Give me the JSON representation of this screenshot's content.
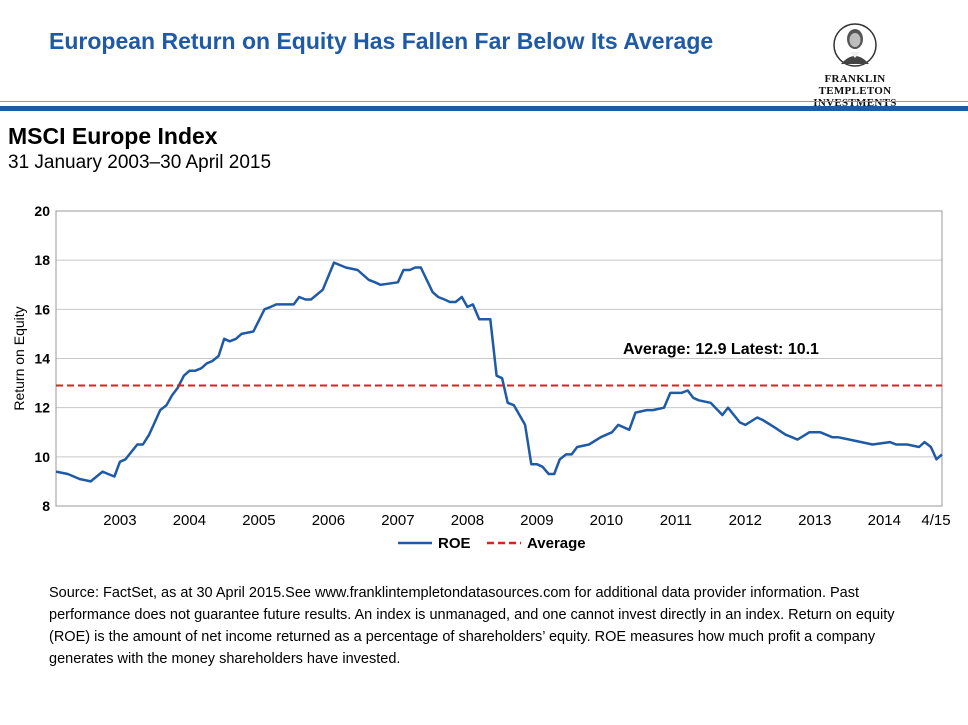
{
  "header": {
    "title": "European Return on Equity Has Fallen Far Below Its Average",
    "logo_line1": "FRANKLIN TEMPLETON",
    "logo_line2": "INVESTMENTS"
  },
  "subtitle": {
    "title": "MSCI Europe Index",
    "date_range": "31 January 2003–30 April 2015"
  },
  "colors": {
    "accent": "#1f5aa6",
    "roe_line": "#1f5aa6",
    "average_line": "#e0201e"
  },
  "chart_data": {
    "type": "line",
    "ylabel": "Return on Equity",
    "xlabel": "",
    "ylim": [
      8,
      20
    ],
    "yticks": [
      8,
      10,
      12,
      14,
      16,
      18,
      20
    ],
    "xlim": [
      2002.58,
      2015.33
    ],
    "categories": [
      "2003",
      "2004",
      "2005",
      "2006",
      "2007",
      "2008",
      "2009",
      "2010",
      "2011",
      "2012",
      "2013",
      "2014",
      "4/15"
    ],
    "grid": true,
    "legend_position": "bottom",
    "annotation": "Average: 12.9 Latest: 10.1",
    "series": [
      {
        "name": "ROE",
        "style": "solid",
        "x": [
          2002.58,
          2002.75,
          2002.92,
          2003.08,
          2003.25,
          2003.33,
          2003.42,
          2003.5,
          2003.58,
          2003.75,
          2003.83,
          2003.92,
          2004.0,
          2004.08,
          2004.17,
          2004.25,
          2004.33,
          2004.42,
          2004.5,
          2004.58,
          2004.67,
          2004.75,
          2004.83,
          2004.92,
          2005.0,
          2005.08,
          2005.17,
          2005.25,
          2005.42,
          2005.58,
          2005.67,
          2005.75,
          2005.92,
          2006.0,
          2006.08,
          2006.17,
          2006.25,
          2006.42,
          2006.58,
          2006.75,
          2006.92,
          2007.08,
          2007.17,
          2007.25,
          2007.5,
          2007.58,
          2007.67,
          2007.75,
          2007.83,
          2008.0,
          2008.08,
          2008.17,
          2008.25,
          2008.33,
          2008.42,
          2008.5,
          2008.58,
          2008.67,
          2008.83,
          2008.92,
          2009.0,
          2009.08,
          2009.17,
          2009.33,
          2009.42,
          2009.5,
          2009.58,
          2009.67,
          2009.75,
          2009.83,
          2009.92,
          2010.0,
          2010.08,
          2010.25,
          2010.42,
          2010.5,
          2010.58,
          2010.67,
          2010.75,
          2010.83,
          2010.92,
          2011.08,
          2011.17,
          2011.33,
          2011.42,
          2011.5,
          2011.58,
          2011.67,
          2011.75,
          2011.83,
          2012.0,
          2012.17,
          2012.25,
          2012.42,
          2012.5,
          2012.67,
          2012.75,
          2012.92,
          2013.08,
          2013.17,
          2013.25,
          2013.42,
          2013.58,
          2013.75,
          2013.83,
          2014.0,
          2014.17,
          2014.33,
          2014.58,
          2014.67,
          2014.83,
          2015.0,
          2015.08,
          2015.17,
          2015.25,
          2015.33
        ],
        "values": [
          9.4,
          9.3,
          9.1,
          9.0,
          9.4,
          9.3,
          9.2,
          9.8,
          9.9,
          10.5,
          10.5,
          10.9,
          11.4,
          11.9,
          12.1,
          12.5,
          12.8,
          13.3,
          13.5,
          13.5,
          13.6,
          13.8,
          13.9,
          14.1,
          14.8,
          14.7,
          14.8,
          15.0,
          15.1,
          16.0,
          16.1,
          16.2,
          16.2,
          16.2,
          16.5,
          16.4,
          16.4,
          16.8,
          17.9,
          17.7,
          17.6,
          17.2,
          17.1,
          17.0,
          17.1,
          17.6,
          17.6,
          17.7,
          17.7,
          16.7,
          16.5,
          16.4,
          16.3,
          16.3,
          16.5,
          16.1,
          16.2,
          15.6,
          15.6,
          13.3,
          13.2,
          12.2,
          12.1,
          11.3,
          9.7,
          9.7,
          9.6,
          9.3,
          9.3,
          9.9,
          10.1,
          10.1,
          10.4,
          10.5,
          10.8,
          10.9,
          11.0,
          11.3,
          11.2,
          11.1,
          11.8,
          11.9,
          11.9,
          12.0,
          12.6,
          12.6,
          12.6,
          12.7,
          12.4,
          12.3,
          12.2,
          11.7,
          12.0,
          11.4,
          11.3,
          11.6,
          11.5,
          11.2,
          10.9,
          10.8,
          10.7,
          11.0,
          11.0,
          10.8,
          10.8,
          10.7,
          10.6,
          10.5,
          10.6,
          10.5,
          10.5,
          10.4,
          10.6,
          10.4,
          9.9,
          10.1
        ]
      },
      {
        "name": "Average",
        "style": "dashed",
        "x": [
          2002.58,
          2015.33
        ],
        "values": [
          12.9,
          12.9
        ]
      }
    ]
  },
  "source_text": "Source: FactSet,  as at 30 April 2015.See www.franklintempletondatasources.com  for additional data provider information.  Past performance does not guarantee future results. An index is unmanaged, and one cannot invest directly in an index. Return on equity (ROE) is the amount of net income returned as a percentage of shareholders’ equity.  ROE measures how much profit  a company generates with the money shareholders have invested."
}
